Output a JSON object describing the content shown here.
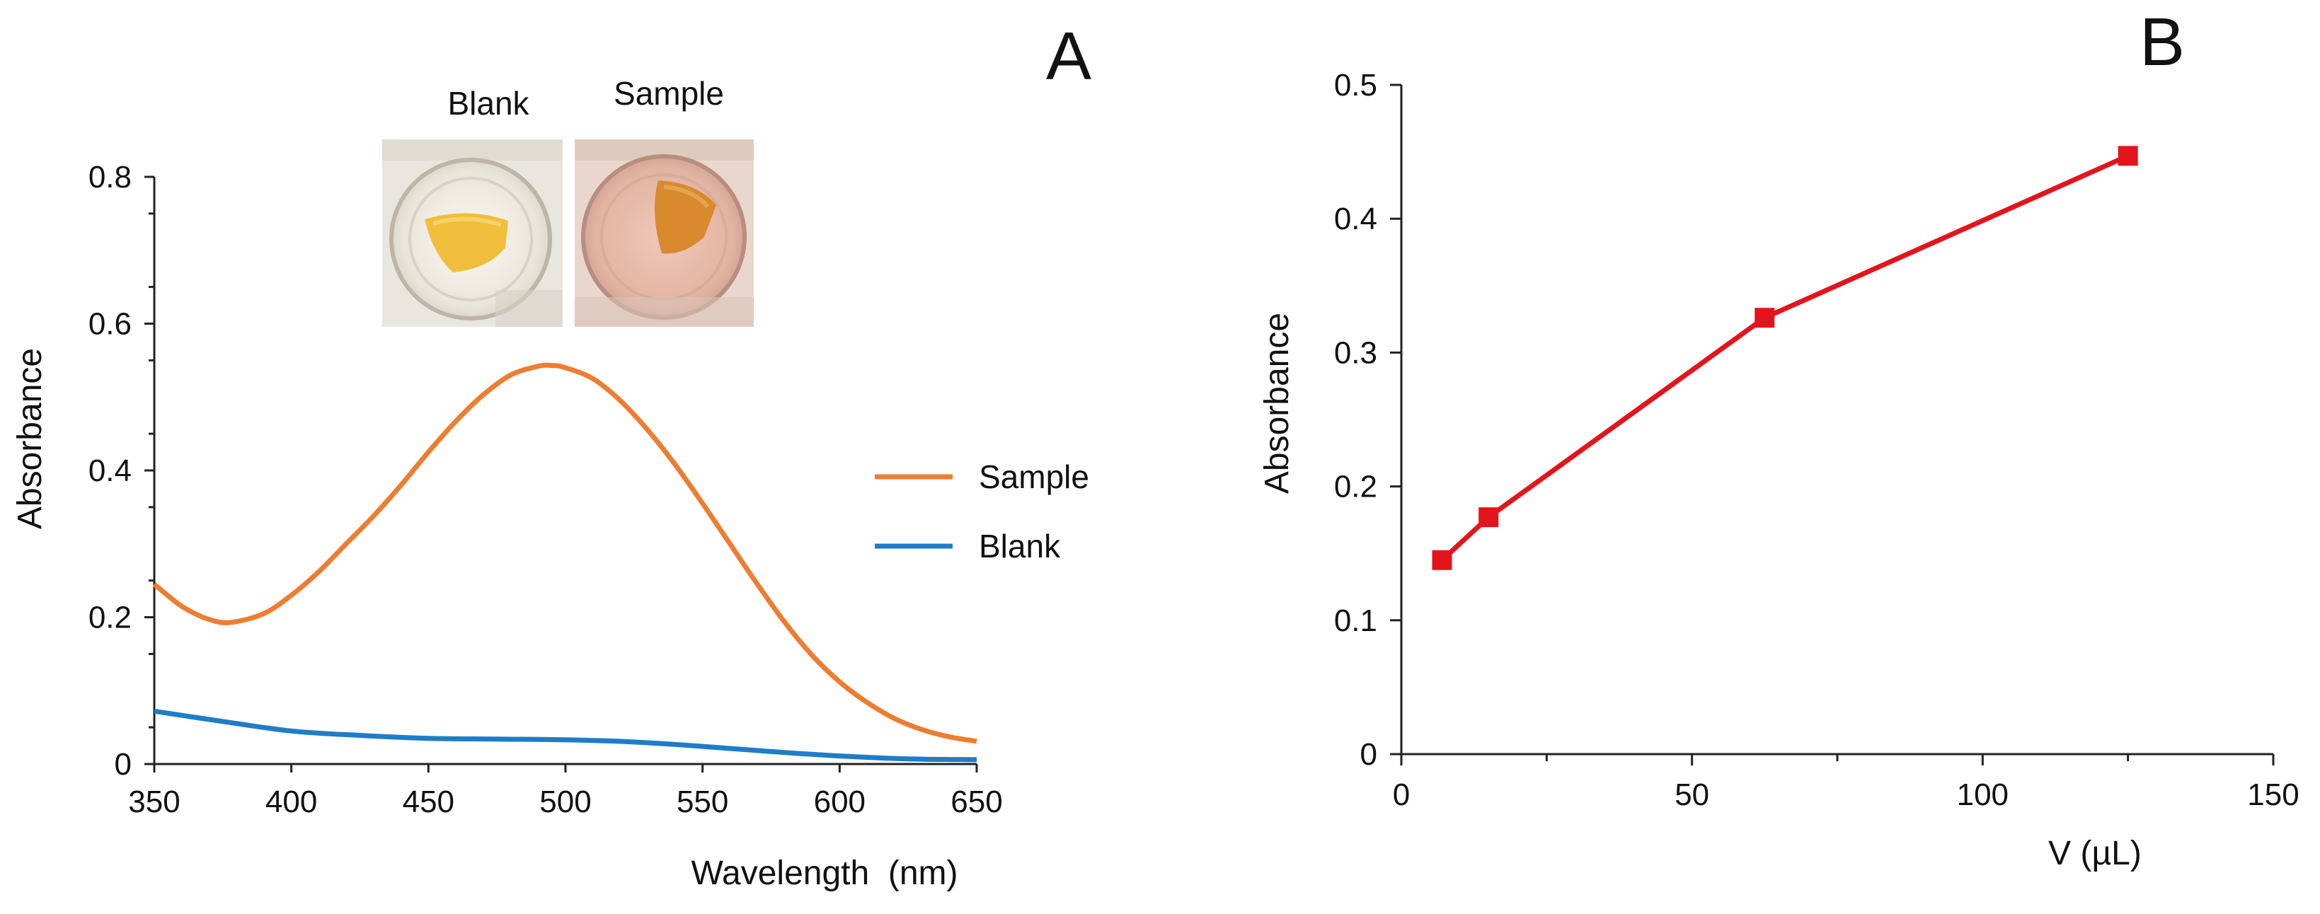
{
  "chart_data": [
    {
      "panel": "A",
      "type": "line",
      "xlabel": "Wavelength  (nm)",
      "ylabel": "Absorbance",
      "xlim": [
        350,
        650
      ],
      "ylim": [
        0,
        0.8
      ],
      "xticks": [
        350,
        400,
        450,
        500,
        550,
        600,
        650
      ],
      "yticks": [
        0,
        0.2,
        0.4,
        0.6,
        0.8
      ],
      "xtick_labels": [
        "350",
        "400",
        "450",
        "500",
        "550",
        "600",
        "650"
      ],
      "ytick_labels": [
        "0",
        "0.2",
        "0.4",
        "0.6",
        "0.8"
      ],
      "legend_position": "right",
      "series": [
        {
          "name": "Sample",
          "color": "#ED7D31",
          "x": [
            350,
            360,
            370,
            378,
            390,
            400,
            410,
            420,
            430,
            440,
            450,
            460,
            470,
            480,
            490,
            495,
            500,
            510,
            520,
            530,
            540,
            550,
            560,
            570,
            580,
            590,
            600,
            610,
            620,
            630,
            640,
            650
          ],
          "y": [
            0.245,
            0.215,
            0.197,
            0.193,
            0.205,
            0.23,
            0.262,
            0.3,
            0.338,
            0.38,
            0.425,
            0.467,
            0.503,
            0.53,
            0.542,
            0.543,
            0.54,
            0.525,
            0.495,
            0.455,
            0.408,
            0.355,
            0.3,
            0.245,
            0.193,
            0.148,
            0.112,
            0.084,
            0.062,
            0.047,
            0.037,
            0.031
          ]
        },
        {
          "name": "Blank",
          "color": "#1F7CC9",
          "x": [
            350,
            375,
            400,
            425,
            450,
            475,
            500,
            525,
            550,
            575,
            600,
            625,
            650
          ],
          "y": [
            0.072,
            0.058,
            0.045,
            0.039,
            0.035,
            0.034,
            0.033,
            0.03,
            0.024,
            0.017,
            0.011,
            0.007,
            0.006
          ]
        }
      ],
      "inset": {
        "captions": [
          "Blank",
          "Sample"
        ],
        "blank_colors": {
          "liquid": "#F2F0EA",
          "disc": "#F1BE3C",
          "rim": "#D8D2C4"
        },
        "sample_colors": {
          "liquid": "#E8BFAF",
          "disc": "#D98A2E",
          "rim": "#C9A595"
        }
      }
    },
    {
      "panel": "B",
      "type": "line",
      "xlabel": "V (µL)",
      "ylabel": "Absorbance",
      "xlim": [
        0,
        150
      ],
      "ylim": [
        0,
        0.5
      ],
      "xticks": [
        0,
        50,
        100,
        150
      ],
      "xticks_minor": [
        25,
        75,
        125
      ],
      "yticks": [
        0,
        0.1,
        0.2,
        0.3,
        0.4,
        0.5
      ],
      "xtick_labels": [
        "0",
        "50",
        "100",
        "150"
      ],
      "ytick_labels": [
        "0",
        "0.1",
        "0.2",
        "0.3",
        "0.4",
        "0.5"
      ],
      "series": [
        {
          "name": "Absorbance",
          "color": "#E3141C",
          "marker": "square",
          "x": [
            7,
            15,
            62.5,
            125
          ],
          "y": [
            0.145,
            0.177,
            0.326,
            0.447
          ]
        }
      ]
    }
  ]
}
